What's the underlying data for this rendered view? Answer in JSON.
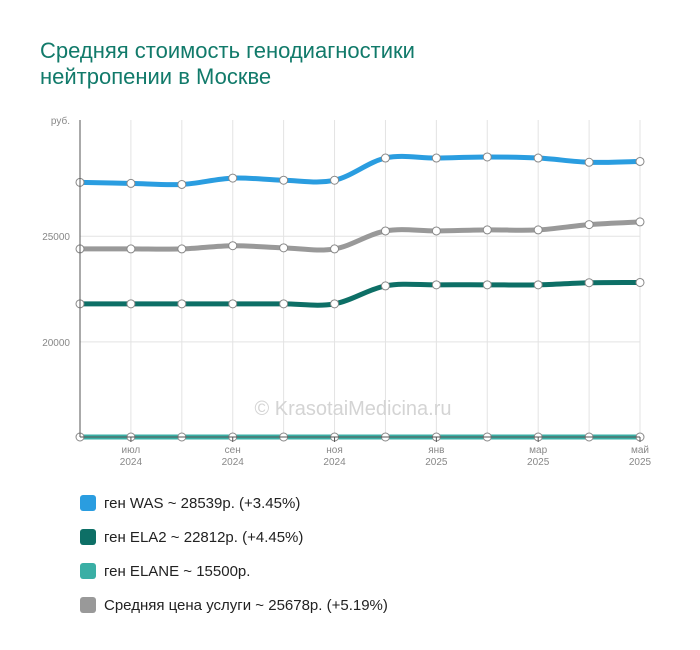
{
  "title_lines": [
    "Средняя стоимость генодиагностики",
    "нейтропении в Москве"
  ],
  "watermark": "© KrasotaiMedicina.ru",
  "chart_data": {
    "type": "line",
    "ylabel": "руб.",
    "ylim": [
      15500,
      30500
    ],
    "yticks": [
      20000,
      25000
    ],
    "x": [
      "2024-06",
      "2024-07",
      "2024-08",
      "2024-09",
      "2024-10",
      "2024-11",
      "2024-12",
      "2025-01",
      "2025-02",
      "2025-03",
      "2025-04",
      "2025-05"
    ],
    "xtick_labels": [
      {
        "month": "июл",
        "year": "2024"
      },
      {
        "month": "сен",
        "year": "2024"
      },
      {
        "month": "ноя",
        "year": "2024"
      },
      {
        "month": "янв",
        "year": "2025"
      },
      {
        "month": "мар",
        "year": "2025"
      },
      {
        "month": "май",
        "year": "2025"
      }
    ],
    "xtick_months": [
      "2024-07",
      "2024-09",
      "2024-11",
      "2025-01",
      "2025-03",
      "2025-05"
    ],
    "grid": true,
    "legend_position": "bottom",
    "series": [
      {
        "name": "ген WAS",
        "color": "#2a9de0",
        "values": [
          27550,
          27500,
          27450,
          27750,
          27650,
          27650,
          28700,
          28700,
          28750,
          28700,
          28500,
          28539
        ]
      },
      {
        "name": "ген ELA2",
        "color": "#0d6f66",
        "values": [
          21800,
          21800,
          21800,
          21800,
          21800,
          21800,
          22650,
          22700,
          22700,
          22700,
          22800,
          22812
        ]
      },
      {
        "name": "ген ELANE",
        "color": "#3aafa5",
        "values": [
          15500,
          15500,
          15500,
          15500,
          15500,
          15500,
          15500,
          15500,
          15500,
          15500,
          15500,
          15500
        ]
      },
      {
        "name": "Средняя цена услуги",
        "color": "#999999",
        "values": [
          24400,
          24400,
          24400,
          24550,
          24450,
          24400,
          25250,
          25250,
          25300,
          25300,
          25550,
          25678
        ]
      }
    ]
  },
  "legend": [
    {
      "text": "ген WAS ~ 28539р. (+3.45%)",
      "color": "#2a9de0"
    },
    {
      "text": "ген ELA2 ~ 22812р. (+4.45%)",
      "color": "#0d6f66"
    },
    {
      "text": "ген ELANE ~ 15500р.",
      "color": "#3aafa5"
    },
    {
      "text": "Средняя цена услуги ~ 25678р. (+5.19%)",
      "color": "#999999"
    }
  ]
}
